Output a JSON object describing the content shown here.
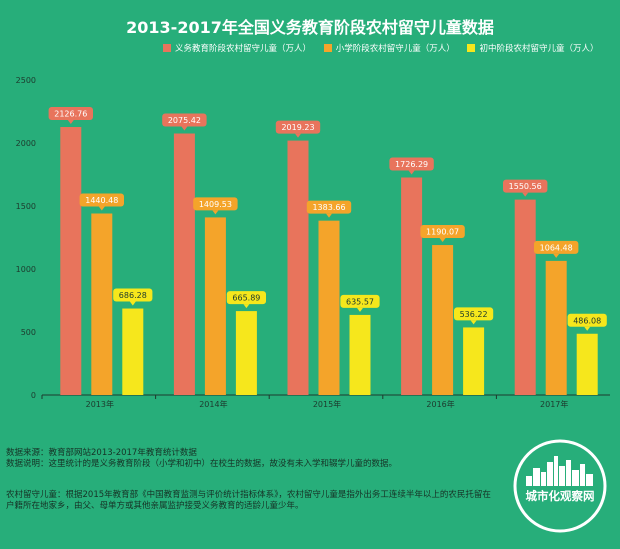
{
  "chart_data": {
    "type": "bar",
    "title": "2013-2017年全国义务教育阶段农村留守儿童数据",
    "categories": [
      "2013年",
      "2014年",
      "2015年",
      "2016年",
      "2017年"
    ],
    "series": [
      {
        "name": "义务教育阶段农村留守儿童（万人）",
        "color": "#e8745c",
        "label_color": "#e8745c",
        "values": [
          2126.76,
          2075.42,
          2019.23,
          1726.29,
          1550.56
        ]
      },
      {
        "name": "小学阶段农村留守儿童（万人）",
        "color": "#f4a42a",
        "label_color": "#f4a42a",
        "values": [
          1440.48,
          1409.53,
          1383.66,
          1190.07,
          1064.48
        ]
      },
      {
        "name": "初中阶段农村留守儿童（万人）",
        "color": "#f6e71c",
        "label_color": "#f6e71c",
        "values": [
          686.28,
          665.89,
          635.57,
          536.22,
          486.08
        ]
      }
    ],
    "value_labels": [
      [
        "2126.76",
        "2075.42",
        "2019.23",
        "1726.29",
        "1550.56"
      ],
      [
        "1440.48",
        "1409.53",
        "1383.66",
        "1190.07",
        "1064.48"
      ],
      [
        "686.28",
        "665.89",
        "635.57",
        "536.22",
        "486.08"
      ]
    ],
    "yticks": [
      "0",
      "500",
      "1000",
      "1500",
      "2000",
      "2500"
    ],
    "ylim": [
      0,
      2500
    ],
    "legend_position": "top",
    "grid": false
  },
  "notes": {
    "source_line1": "数据来源：教育部网站2013-2017年教育统计数据",
    "source_line2": "数据说明：这里统计的是义务教育阶段（小学和初中）在校生的数据，故没有未入学和辍学儿童的数据。",
    "definition": "农村留守儿童：根据2015年教育部《中国教育监测与评价统计指标体系》，农村留守儿童是指外出务工连续半年以上的农民托留在户籍所在地家乡，由父、母单方或其他亲属监护接受义务教育的适龄儿童少年。"
  },
  "logo": {
    "text": "城市化观察网",
    "icon": "city-skyline-icon"
  }
}
